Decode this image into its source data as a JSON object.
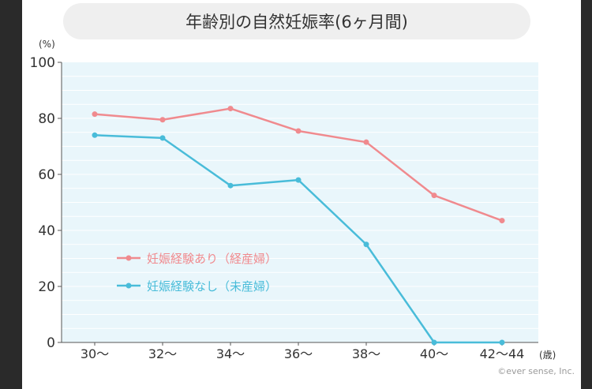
{
  "chart_data": {
    "type": "line",
    "title": "年齢別の自然妊娠率(6ヶ月間)",
    "ylabel": "(%)",
    "xlabel": "(歳)",
    "categories": [
      "30〜",
      "32〜",
      "34〜",
      "36〜",
      "38〜",
      "40〜",
      "42〜44"
    ],
    "ylim": [
      0,
      100
    ],
    "yticks": [
      0,
      20,
      40,
      60,
      80,
      100
    ],
    "grid": true,
    "legend_position": "lower-left",
    "series": [
      {
        "name": "妊娠経験あり（経産婦）",
        "color": "#f08a8e",
        "values": [
          81.5,
          79.5,
          83.5,
          75.5,
          71.5,
          52.5,
          43.5
        ]
      },
      {
        "name": "妊娠経験なし（未産婦）",
        "color": "#49bcd9",
        "values": [
          74,
          73,
          56,
          58,
          35,
          0,
          0
        ]
      }
    ]
  },
  "footer": {
    "copyright": "©ever sense, Inc."
  },
  "colors": {
    "plot_background": "#e9f6fb",
    "gridline": "#ffffff"
  }
}
